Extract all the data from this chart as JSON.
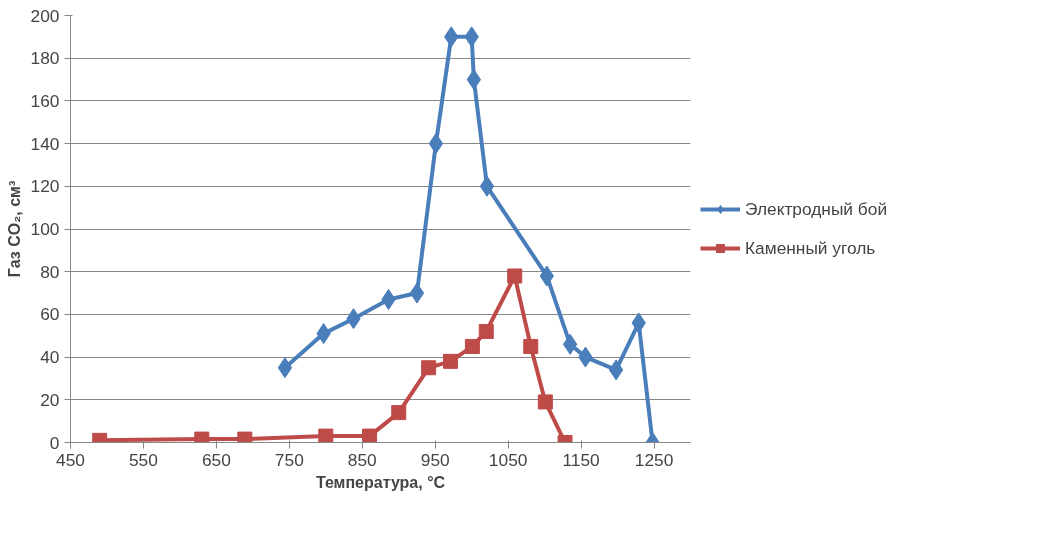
{
  "chart_data": {
    "type": "line",
    "xlabel": "Температура, °C",
    "ylabel": "Газ CO₂, см³",
    "xlim": [
      450,
      1300
    ],
    "xticks": [
      450,
      550,
      650,
      750,
      850,
      950,
      1050,
      1150,
      1250
    ],
    "ylim": [
      0,
      200
    ],
    "yticks": [
      0,
      20,
      40,
      60,
      80,
      100,
      120,
      140,
      160,
      180,
      200
    ],
    "grid": "y",
    "legend": "right",
    "line_style": "solid",
    "series": [
      {
        "name": "Электродный бой",
        "color": "#4a7ebb",
        "marker": "diamond",
        "x": [
          744,
          797,
          838,
          886,
          925,
          951,
          972,
          1000,
          1003,
          1021,
          1103,
          1135,
          1156,
          1198,
          1229,
          1248
        ],
        "values": [
          35,
          51,
          58,
          67,
          70,
          140,
          190,
          190,
          170,
          120,
          78,
          46,
          40,
          34,
          56,
          0
        ]
      },
      {
        "name": "Каменный уголь",
        "color": "#be4b48",
        "marker": "square",
        "x": [
          490,
          630,
          689,
          800,
          860,
          900,
          941,
          971,
          1001,
          1020,
          1059,
          1081,
          1101,
          1128
        ],
        "values": [
          1,
          1.6,
          1.6,
          3,
          3,
          14,
          35,
          38,
          45,
          52,
          78,
          45,
          19,
          0
        ]
      }
    ]
  }
}
